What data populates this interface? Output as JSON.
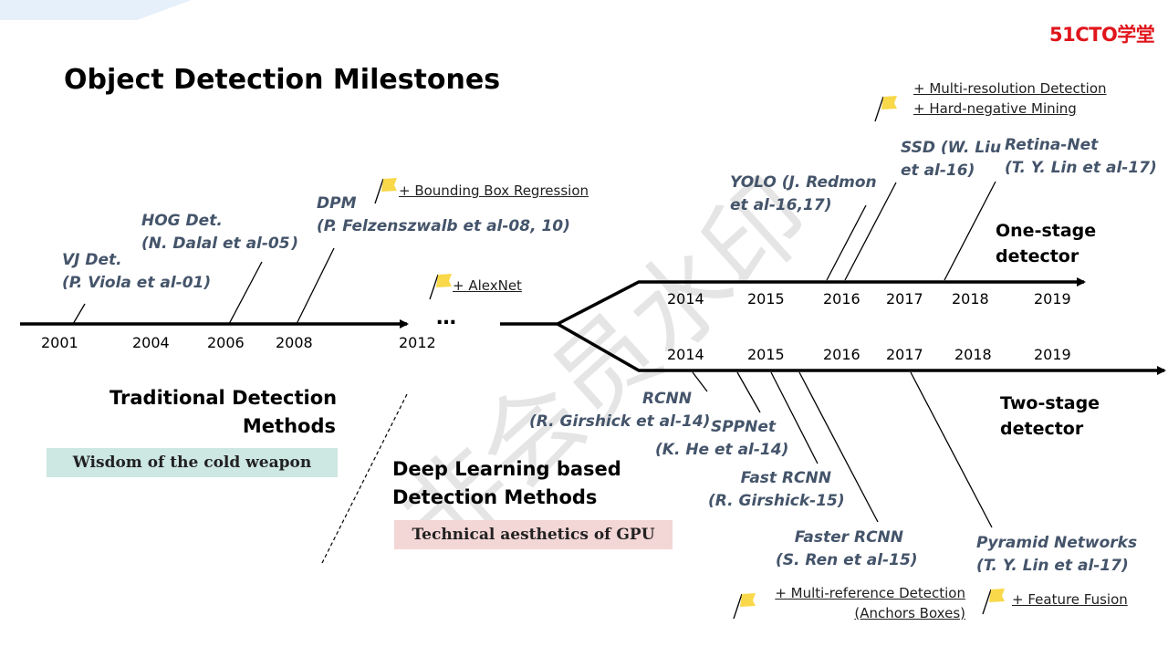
{
  "logo": "51CTO学堂",
  "title": "Object Detection Milestones",
  "watermark": "非会员水印",
  "traditional": {
    "heading_line1": "Traditional Detection",
    "heading_line2": "Methods",
    "tag": "Wisdom of the cold weapon",
    "years": [
      "2001",
      "2004",
      "2006",
      "2008",
      "2012"
    ],
    "ellipsis": "…",
    "detectors": [
      {
        "name": "VJ Det.",
        "cite": "(P. Viola et al-01)"
      },
      {
        "name": "HOG Det.",
        "cite": "(N. Dalal et al-05 )"
      },
      {
        "name": "DPM",
        "cite": "(P. Felzenszwalb et al-08, 10)"
      }
    ],
    "features": [
      "+ Bounding Box Regression",
      "+ AlexNet"
    ]
  },
  "deep_learning": {
    "heading_line1": "Deep Learning based",
    "heading_line2": "Detection Methods",
    "tag": "Technical aesthetics of GPU"
  },
  "one_stage": {
    "label_line1": "One-stage",
    "label_line2": "detector",
    "years": [
      "2014",
      "2015",
      "2016",
      "2017",
      "2018",
      "2019"
    ],
    "detectors": [
      {
        "name": "YOLO (J. Redmon",
        "cite": "et al-16,17)"
      },
      {
        "name": "SSD (W. Liu",
        "cite": "et al-16)"
      },
      {
        "name": "Retina-Net",
        "cite": "(T. Y. Lin et al-17)"
      }
    ],
    "features": [
      "+ Multi-resolution Detection",
      "+ Hard-negative Mining"
    ]
  },
  "two_stage": {
    "label_line1": "Two-stage",
    "label_line2": "detector",
    "years": [
      "2014",
      "2015",
      "2016",
      "2017",
      "2018",
      "2019"
    ],
    "detectors": [
      {
        "name": "RCNN",
        "cite": "(R. Girshick et al-14)"
      },
      {
        "name": "SPPNet",
        "cite": "(K. He et al-14)"
      },
      {
        "name": "Fast RCNN",
        "cite": "(R. Girshick-15)"
      },
      {
        "name": "Faster RCNN",
        "cite": "(S. Ren et al-15)"
      },
      {
        "name": "Pyramid Networks",
        "cite": "(T. Y. Lin et al-17)"
      }
    ],
    "features": [
      "+ Multi-reference Detection",
      "(Anchors Boxes)",
      "+ Feature Fusion"
    ]
  },
  "colors": {
    "detector_text": "#44546a",
    "flag": "#f9d84a",
    "traditional_tag_bg": "#cde7e3",
    "deep_learning_tag_bg": "#f3d6d6",
    "logo": "#e0151b"
  },
  "icons": [
    "flag-icon"
  ]
}
